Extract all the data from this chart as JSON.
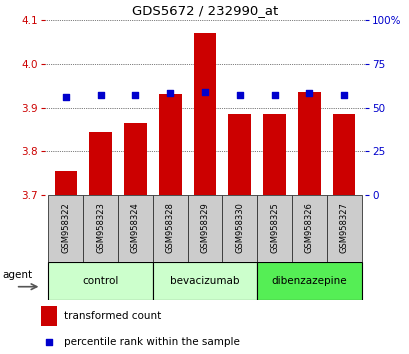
{
  "title": "GDS5672 / 232990_at",
  "samples": [
    "GSM958322",
    "GSM958323",
    "GSM958324",
    "GSM958328",
    "GSM958329",
    "GSM958330",
    "GSM958325",
    "GSM958326",
    "GSM958327"
  ],
  "bar_values": [
    3.755,
    3.845,
    3.865,
    3.93,
    4.07,
    3.885,
    3.885,
    3.935,
    3.885
  ],
  "dot_values": [
    3.925,
    3.928,
    3.928,
    3.933,
    3.935,
    3.928,
    3.928,
    3.933,
    3.928
  ],
  "bar_bottom": 3.7,
  "ylim_left": [
    3.7,
    4.1
  ],
  "ylim_right": [
    0,
    100
  ],
  "yticks_left": [
    3.7,
    3.8,
    3.9,
    4.0,
    4.1
  ],
  "yticks_right": [
    0,
    25,
    50,
    75,
    100
  ],
  "ytick_labels_right": [
    "0",
    "25",
    "50",
    "75",
    "100%"
  ],
  "bar_color": "#cc0000",
  "dot_color": "#0000cc",
  "groups": [
    {
      "label": "control",
      "indices": [
        0,
        1,
        2
      ],
      "color": "#ccffcc"
    },
    {
      "label": "bevacizumab",
      "indices": [
        3,
        4,
        5
      ],
      "color": "#ccffcc"
    },
    {
      "label": "dibenzazepine",
      "indices": [
        6,
        7,
        8
      ],
      "color": "#55ee55"
    }
  ],
  "legend_bar_label": "transformed count",
  "legend_dot_label": "percentile rank within the sample",
  "agent_label": "agent",
  "background_color": "#ffffff",
  "tick_color_left": "#cc0000",
  "tick_color_right": "#0000cc",
  "sample_box_color": "#cccccc",
  "sample_box_edge": "#333333"
}
